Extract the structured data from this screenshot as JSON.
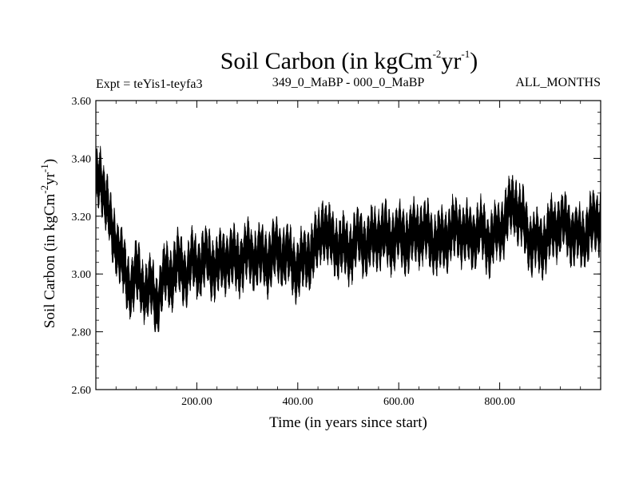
{
  "chart_data": {
    "type": "line",
    "title_main": "Soil Carbon (in kgCm",
    "title_exp1": "-2",
    "title_mid": "yr",
    "title_exp2": "-1",
    "title_close": ")",
    "subtitle_left": "Expt = teYis1-teyfa3",
    "subtitle_center": "349_0_MaBP - 000_0_MaBP",
    "subtitle_right": "ALL_MONTHS",
    "xlabel": "Time (in years since start)",
    "ylabel_main": "Soil Carbon (in kgCm",
    "ylabel_exp1": "-2",
    "ylabel_mid": "yr",
    "ylabel_exp2": "-1",
    "ylabel_close": ")",
    "xlim": [
      0,
      1000
    ],
    "ylim": [
      2.6,
      3.6
    ],
    "xticks": [
      200,
      400,
      600,
      800
    ],
    "xtick_labels": [
      "200.00",
      "400.00",
      "600.00",
      "800.00"
    ],
    "yticks": [
      2.6,
      2.8,
      3.0,
      3.2,
      3.4,
      3.6
    ],
    "ytick_labels": [
      "2.60",
      "2.80",
      "3.00",
      "3.20",
      "3.40",
      "3.60"
    ],
    "line_color": "#000000",
    "series": [
      {
        "name": "Soil Carbon",
        "x": [
          0,
          10,
          20,
          30,
          40,
          50,
          60,
          70,
          80,
          90,
          100,
          110,
          120,
          130,
          140,
          150,
          160,
          170,
          180,
          190,
          200,
          220,
          240,
          260,
          280,
          300,
          320,
          340,
          360,
          380,
          400,
          420,
          440,
          450,
          460,
          480,
          500,
          520,
          540,
          560,
          580,
          600,
          620,
          640,
          660,
          680,
          700,
          720,
          740,
          760,
          780,
          800,
          820,
          830,
          840,
          860,
          880,
          900,
          920,
          940,
          960,
          980,
          1000
        ],
        "y": [
          3.3,
          3.35,
          3.25,
          3.15,
          3.12,
          3.05,
          2.98,
          2.96,
          3.0,
          2.97,
          2.94,
          2.95,
          2.9,
          2.96,
          3.0,
          2.99,
          3.03,
          3.02,
          3.0,
          3.04,
          3.03,
          3.05,
          3.02,
          3.06,
          3.04,
          3.07,
          3.06,
          3.05,
          3.08,
          3.06,
          3.02,
          3.06,
          3.1,
          3.18,
          3.12,
          3.1,
          3.08,
          3.12,
          3.1,
          3.14,
          3.12,
          3.13,
          3.12,
          3.15,
          3.13,
          3.1,
          3.14,
          3.16,
          3.12,
          3.15,
          3.11,
          3.15,
          3.22,
          3.25,
          3.2,
          3.12,
          3.1,
          3.14,
          3.18,
          3.15,
          3.12,
          3.16,
          3.2
        ]
      }
    ]
  }
}
